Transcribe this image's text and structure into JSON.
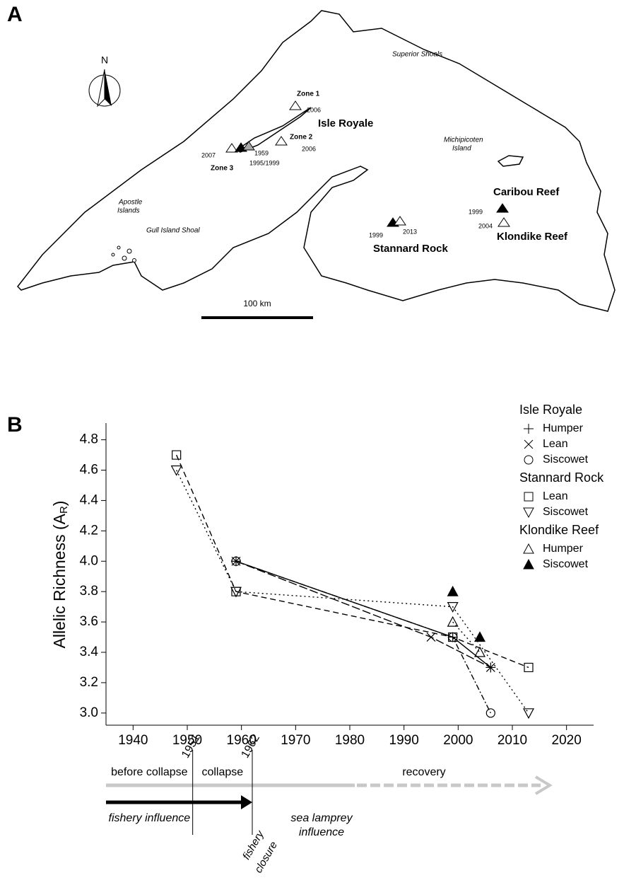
{
  "map": {
    "panel_label": "A",
    "north": "N",
    "scale": "100 km",
    "labels": [
      "Superior Shoals",
      "Zone 1",
      "2006",
      "Isle Royale",
      "Zone 2",
      "2006",
      "2007",
      "1959",
      "1995/1999",
      "Zone 3",
      "Michipicoten",
      "Island",
      "Caribou Reef",
      "1999",
      "2004",
      "Klondike Reef",
      "Apostle",
      "Islands",
      "Gull Island Shoal",
      "1999",
      "2013",
      "Stannard Rock"
    ]
  },
  "chart_data": {
    "type": "line",
    "panel_label": "B",
    "ylabel": {
      "main": "Allelic Richness (A",
      "subscript": "R",
      "close": ")"
    },
    "xlim": [
      1935,
      2025
    ],
    "xticks": [
      1940,
      1950,
      1960,
      1970,
      1980,
      1990,
      2000,
      2010,
      2020
    ],
    "ylim": [
      2.92,
      4.91
    ],
    "yticks": [
      {
        "value": 3,
        "label": "3.0"
      },
      3.2,
      3.4,
      3.6,
      3.8,
      {
        "value": 4,
        "label": "4.0"
      },
      4.2,
      4.4,
      4.6,
      4.8
    ],
    "series_groups": [
      {
        "name": "Isle Royale",
        "series": [
          {
            "name": "Humper",
            "marker": "plus",
            "line": "solid",
            "x": [
              1959,
              1999,
              2006
            ],
            "values": [
              4.0,
              3.5,
              3.3
            ]
          },
          {
            "name": "Lean",
            "marker": "cross",
            "line": "longdash",
            "x": [
              1959,
              1995,
              2006
            ],
            "values": [
              4.0,
              3.5,
              3.3
            ]
          },
          {
            "name": "Siscowet",
            "marker": "circle",
            "line": "dotdash",
            "x": [
              1959,
              1999,
              2006
            ],
            "values": [
              4.0,
              3.5,
              3.0
            ]
          }
        ]
      },
      {
        "name": "Stannard Rock",
        "series": [
          {
            "name": "Lean",
            "marker": "square",
            "line": "dashed",
            "x": [
              1948,
              1959,
              1999,
              2013
            ],
            "values": [
              4.7,
              3.8,
              3.5,
              3.3
            ]
          },
          {
            "name": "Siscowet",
            "marker": "triangle-down",
            "line": "dotted",
            "x": [
              1948,
              1959,
              1999,
              2013
            ],
            "values": [
              4.6,
              3.8,
              3.7,
              3.0
            ]
          }
        ]
      },
      {
        "name": "Klondike Reef",
        "series": [
          {
            "name": "Humper",
            "marker": "triangle-up",
            "line": "dotted",
            "x": [
              1999,
              2004
            ],
            "values": [
              3.6,
              3.4
            ]
          },
          {
            "name": "Siscowet",
            "marker": "triangle-up-filled",
            "line": "none",
            "x": [
              1999,
              2004
            ],
            "values": [
              3.8,
              3.5
            ]
          }
        ]
      }
    ],
    "timeline": {
      "events": [
        1951,
        1962
      ],
      "phases": [
        "before collapse",
        "collapse",
        "recovery"
      ],
      "influences": [
        "fishery influence",
        "sea lamprey",
        "influence"
      ],
      "closure": [
        "fishery",
        "closure"
      ]
    }
  }
}
